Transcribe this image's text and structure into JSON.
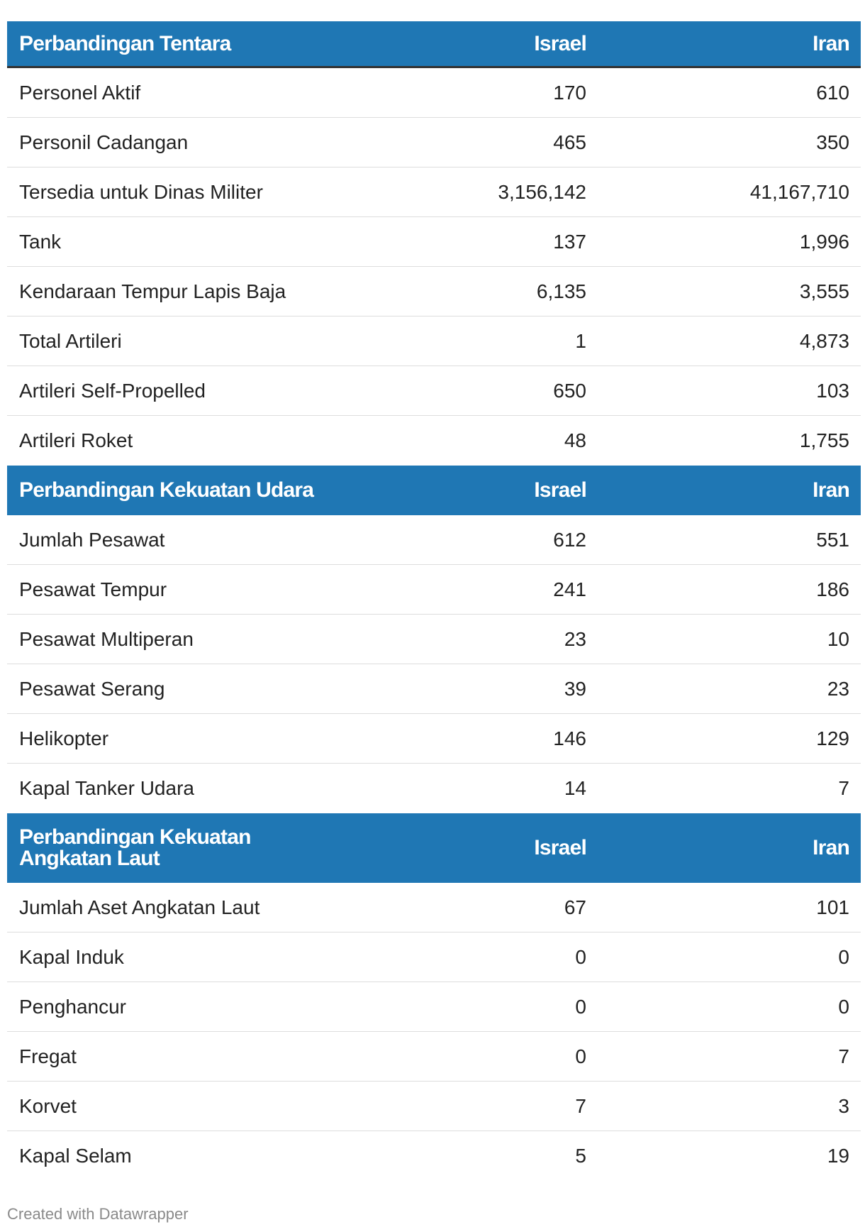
{
  "colors": {
    "header_bg": "#1f77b4",
    "header_text": "#ffffff",
    "divider": "#dddddd",
    "header_rule": "#333333",
    "footer_text": "#8a8a8a"
  },
  "chart_data": {
    "type": "table",
    "columns": [
      "Israel",
      "Iran"
    ],
    "sections": [
      {
        "title": "Perbandingan Tentara",
        "headers": [
          "Israel",
          "Iran"
        ],
        "rows": [
          {
            "label": "Personel Aktif",
            "israel": "170",
            "iran": "610"
          },
          {
            "label": "Personil Cadangan",
            "israel": "465",
            "iran": "350"
          },
          {
            "label": "Tersedia untuk Dinas Militer",
            "israel": "3,156,142",
            "iran": "41,167,710"
          },
          {
            "label": "Tank",
            "israel": "137",
            "iran": "1,996"
          },
          {
            "label": "Kendaraan Tempur Lapis Baja",
            "israel": "6,135",
            "iran": "3,555"
          },
          {
            "label": "Total Artileri",
            "israel": "1",
            "iran": "4,873"
          },
          {
            "label": "Artileri Self-Propelled",
            "israel": "650",
            "iran": "103"
          },
          {
            "label": "Artileri Roket",
            "israel": "48",
            "iran": "1,755"
          }
        ]
      },
      {
        "title": "Perbandingan Kekuatan Udara",
        "headers": [
          "Israel",
          "Iran"
        ],
        "rows": [
          {
            "label": "Jumlah Pesawat",
            "israel": "612",
            "iran": "551"
          },
          {
            "label": "Pesawat Tempur",
            "israel": "241",
            "iran": "186"
          },
          {
            "label": "Pesawat Multiperan",
            "israel": "23",
            "iran": "10"
          },
          {
            "label": "Pesawat Serang",
            "israel": "39",
            "iran": "23"
          },
          {
            "label": "Helikopter",
            "israel": "146",
            "iran": "129"
          },
          {
            "label": "Kapal Tanker Udara",
            "israel": "14",
            "iran": "7"
          }
        ]
      },
      {
        "title_lines": [
          "Perbandingan Kekuatan",
          "Angkatan Laut"
        ],
        "headers": [
          "Israel",
          "Iran"
        ],
        "rows": [
          {
            "label": "Jumlah Aset Angkatan Laut",
            "israel": "67",
            "iran": "101"
          },
          {
            "label": "Kapal Induk",
            "israel": "0",
            "iran": "0"
          },
          {
            "label": "Penghancur",
            "israel": "0",
            "iran": "0"
          },
          {
            "label": "Fregat",
            "israel": "0",
            "iran": "7"
          },
          {
            "label": "Korvet",
            "israel": "7",
            "iran": "3"
          },
          {
            "label": "Kapal Selam",
            "israel": "5",
            "iran": "19"
          }
        ]
      }
    ]
  },
  "footer": {
    "credit": "Created with Datawrapper"
  }
}
